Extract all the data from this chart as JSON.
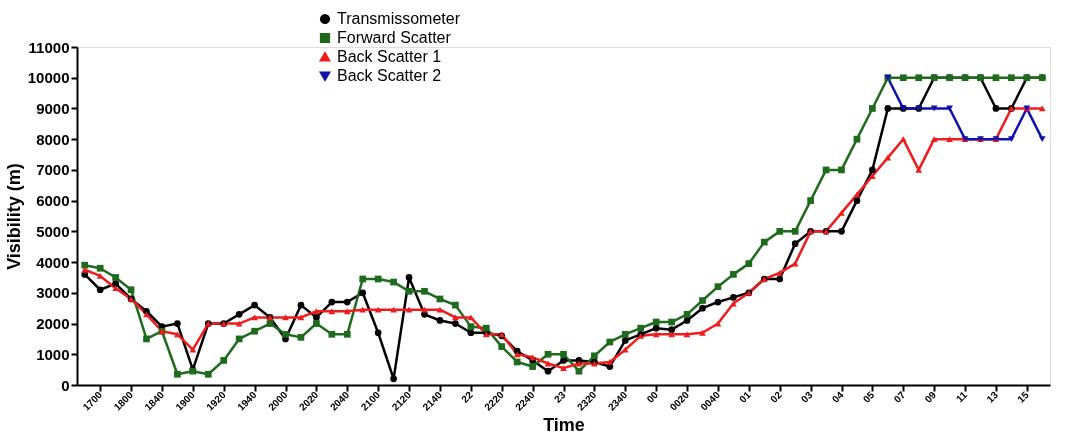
{
  "chart_data": {
    "type": "line",
    "xlabel": "Time",
    "ylabel": "Visibility (m)",
    "categories": [
      null,
      "1700",
      null,
      "1800",
      null,
      "1840",
      null,
      "1900",
      null,
      "1920",
      null,
      "1940",
      null,
      "2000",
      null,
      "2020",
      null,
      "2040",
      null,
      "2100",
      null,
      "2120",
      null,
      "2140",
      null,
      "22",
      null,
      "2220",
      null,
      "2240",
      null,
      "23",
      null,
      "2320",
      null,
      "2340",
      null,
      "00",
      null,
      "0020",
      null,
      "0040",
      null,
      "01",
      null,
      "02",
      null,
      "03",
      null,
      "04",
      null,
      "05",
      null,
      "07",
      null,
      "09",
      null,
      "11",
      null,
      "13",
      null,
      "15",
      null
    ],
    "series": [
      {
        "name": "Transmissometer",
        "color": "#000000",
        "marker": "circle",
        "values": [
          3600,
          3100,
          3300,
          2800,
          2400,
          1900,
          2000,
          500,
          2000,
          2000,
          2300,
          2600,
          2200,
          1500,
          2600,
          2200,
          2700,
          2700,
          3000,
          1700,
          200,
          3500,
          2300,
          2100,
          2000,
          1700,
          1700,
          1600,
          1100,
          800,
          450,
          800,
          800,
          750,
          600,
          1450,
          1650,
          1850,
          1800,
          2100,
          2500,
          2700,
          2850,
          3000,
          3450,
          3450,
          4600,
          5000,
          5000,
          5000,
          6000,
          7000,
          9000,
          9000,
          9000,
          10000,
          10000,
          10000,
          10000,
          9000,
          9000,
          10000,
          10000
        ]
      },
      {
        "name": "Forward Scatter",
        "color": "#1e6b1e",
        "marker": "square",
        "values": [
          3900,
          3800,
          3500,
          3100,
          1500,
          1750,
          350,
          450,
          350,
          800,
          1500,
          1750,
          2000,
          1650,
          1550,
          2000,
          1650,
          1650,
          3450,
          3450,
          3350,
          3050,
          3050,
          2800,
          2600,
          1900,
          1850,
          1250,
          750,
          600,
          1000,
          1000,
          450,
          950,
          1400,
          1650,
          1850,
          2050,
          2050,
          2300,
          2750,
          3200,
          3600,
          3950,
          4650,
          5000,
          5000,
          6000,
          7000,
          7000,
          8000,
          9000,
          10000,
          10000,
          10000,
          10000,
          10000,
          10000,
          10000,
          10000,
          10000,
          10000,
          10000
        ]
      },
      {
        "name": "Back Scatter 1",
        "color": "#ee1c1c",
        "marker": "triangle",
        "values": [
          3750,
          3550,
          3150,
          2800,
          2300,
          1750,
          1650,
          1150,
          2000,
          2000,
          2000,
          2200,
          2200,
          2200,
          2200,
          2400,
          2400,
          2400,
          2450,
          2450,
          2450,
          2450,
          2450,
          2450,
          2200,
          2200,
          1650,
          1650,
          1000,
          900,
          700,
          550,
          700,
          700,
          750,
          1150,
          1600,
          1650,
          1650,
          1650,
          1700,
          2000,
          2650,
          3000,
          3450,
          3650,
          3950,
          5000,
          5000,
          5600,
          6200,
          6800,
          7400,
          8000,
          7000,
          8000,
          8000,
          8000,
          8000,
          8000,
          9000,
          9000,
          9000
        ]
      },
      {
        "name": "Back Scatter 2",
        "color": "#1010b0",
        "marker": "triangle-down",
        "values": [
          null,
          null,
          null,
          null,
          null,
          null,
          null,
          null,
          null,
          null,
          null,
          null,
          null,
          null,
          null,
          null,
          null,
          null,
          null,
          null,
          null,
          null,
          null,
          null,
          null,
          null,
          null,
          null,
          null,
          null,
          null,
          null,
          null,
          null,
          null,
          null,
          null,
          null,
          null,
          null,
          null,
          null,
          null,
          null,
          null,
          null,
          null,
          null,
          null,
          null,
          null,
          null,
          10000,
          9000,
          9000,
          9000,
          9000,
          8000,
          8000,
          8000,
          8000,
          9000,
          8000
        ]
      }
    ],
    "ylim": [
      0,
      11000
    ],
    "yticks": [
      0,
      1000,
      2000,
      3000,
      4000,
      5000,
      6000,
      7000,
      8000,
      9000,
      10000,
      11000
    ],
    "grid": false,
    "legend": "top left",
    "line_style": "solid"
  }
}
